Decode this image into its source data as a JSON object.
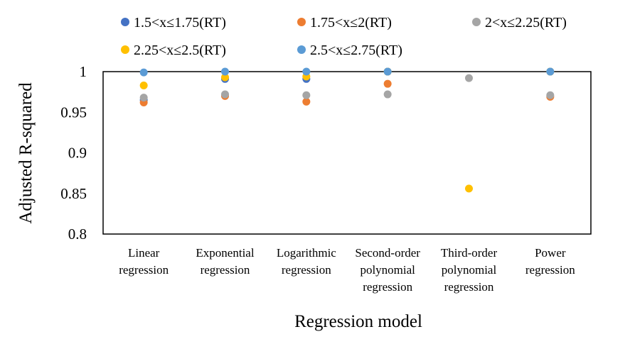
{
  "chart_data": {
    "type": "scatter",
    "xlabel": "Regression model",
    "ylabel": "Adjusted R-squared",
    "ylim": [
      0.8,
      1.0
    ],
    "yticks": [
      "0.8",
      "0.85",
      "0.9",
      "0.95",
      "1"
    ],
    "grid": false,
    "legend_position": "top",
    "categories": [
      [
        "Linear",
        "regression"
      ],
      [
        "Exponential",
        "regression"
      ],
      [
        "Logarithmic",
        "regression"
      ],
      [
        "Second-order",
        "polynomial",
        "regression"
      ],
      [
        "Third-order",
        "polynomial",
        "regression"
      ],
      [
        "Power",
        "regression"
      ]
    ],
    "series": [
      {
        "name": "1.5<x≤1.75(RT)",
        "color": "#4472C4",
        "values": [
          0.965,
          0.991,
          0.991,
          1.0,
          null,
          1.0
        ]
      },
      {
        "name": "1.75<x≤2(RT)",
        "color": "#ED7D31",
        "values": [
          0.962,
          0.97,
          0.963,
          0.985,
          null,
          0.969
        ]
      },
      {
        "name": "2<x≤2.25(RT)",
        "color": "#A5A5A5",
        "values": [
          0.968,
          0.972,
          0.971,
          0.972,
          0.992,
          0.971
        ]
      },
      {
        "name": "2.25<x≤2.5(RT)",
        "color": "#FFC000",
        "values": [
          0.983,
          0.993,
          0.994,
          1.0,
          0.856,
          1.0
        ]
      },
      {
        "name": "2.5<x≤2.75(RT)",
        "color": "#5B9BD5",
        "values": [
          0.999,
          1.0,
          1.0,
          1.0,
          null,
          1.0
        ]
      }
    ]
  }
}
